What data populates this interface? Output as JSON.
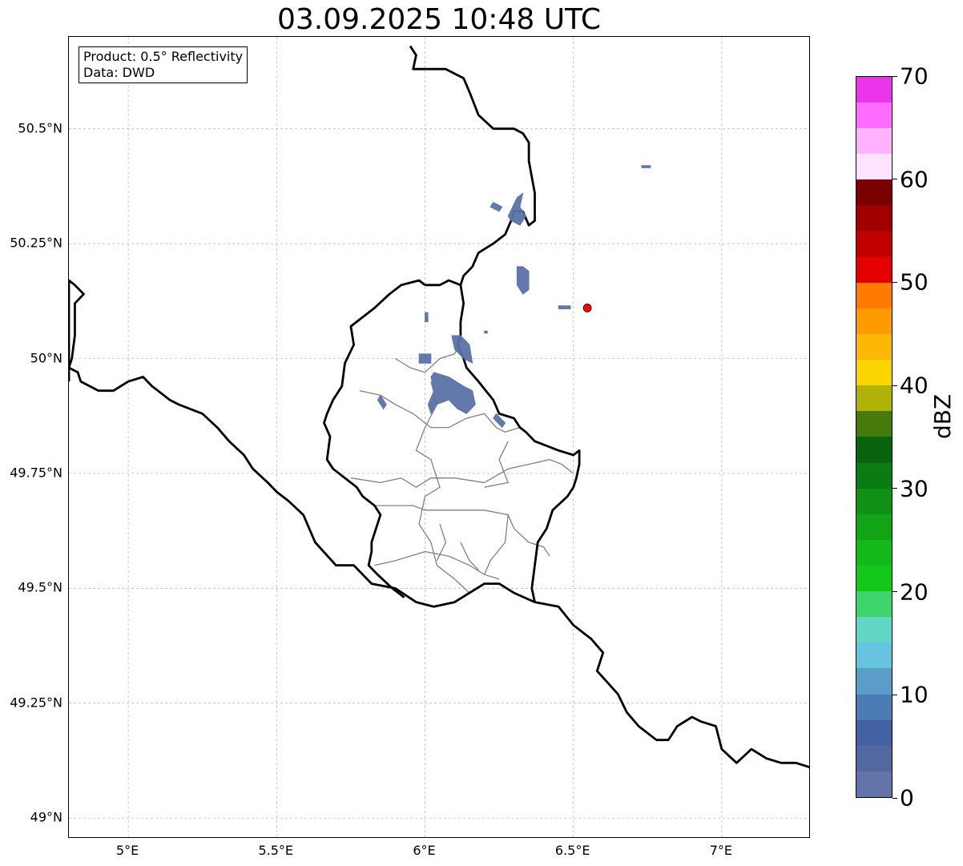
{
  "title": "03.09.2025 10:48 UTC",
  "info": {
    "product": "Product: 0.5° Reflectivity",
    "data_source": "Data: DWD"
  },
  "map_extent": {
    "lon_min": 4.8,
    "lon_max": 7.3,
    "lat_min": 48.955,
    "lat_max": 50.7
  },
  "grid": {
    "lon_ticks": [
      5.0,
      5.5,
      6.0,
      6.5,
      7.0
    ],
    "lon_labels": [
      "5°E",
      "5.5°E",
      "6°E",
      "6.5°E",
      "7°E"
    ],
    "lat_ticks": [
      50.5,
      50.25,
      50.0,
      49.75,
      49.5,
      49.25,
      49.0
    ],
    "lat_labels": [
      "50.5°N",
      "50.25°N",
      "50°N",
      "49.75°N",
      "49.5°N",
      "49.25°N",
      "49°N"
    ]
  },
  "radar_site": {
    "lon": 6.547,
    "lat": 50.11,
    "color": "#ff0000"
  },
  "echo_color": "#5b72a8",
  "colorbar": {
    "label": "dBZ",
    "min": 0,
    "max": 70,
    "tick_values": [
      0,
      10,
      20,
      30,
      40,
      50,
      60,
      70
    ],
    "tick_labels": [
      "0",
      "10",
      "20",
      "30",
      "40",
      "50",
      "60",
      "70"
    ],
    "colors": [
      "#6574a8",
      "#5468a0",
      "#4461a3",
      "#4b7cb5",
      "#5b9dc9",
      "#67c4de",
      "#61d6c4",
      "#3dd46c",
      "#12c919",
      "#13ba1a",
      "#11a516",
      "#0f9115",
      "#0a7c12",
      "#08650d",
      "#467a0b",
      "#afb207",
      "#fcd600",
      "#fdb805",
      "#fe9a02",
      "#fe7a00",
      "#e40000",
      "#c10000",
      "#a10000",
      "#7b0000",
      "#ffe2ff",
      "#ffb3ff",
      "#ff6cff",
      "#ea35ea"
    ]
  },
  "features": {
    "borders": [
      [
        [
          5.95,
          50.68
        ],
        [
          5.97,
          50.66
        ],
        [
          5.96,
          50.63
        ],
        [
          6.07,
          50.63
        ],
        [
          6.13,
          50.61
        ],
        [
          6.15,
          50.58
        ],
        [
          6.18,
          50.53
        ],
        [
          6.23,
          50.5
        ],
        [
          6.3,
          50.5
        ],
        [
          6.33,
          50.49
        ],
        [
          6.35,
          50.47
        ],
        [
          6.35,
          50.43
        ],
        [
          6.37,
          50.36
        ],
        [
          6.37,
          50.33
        ],
        [
          6.37,
          50.3
        ],
        [
          6.35,
          50.29
        ],
        [
          6.33,
          50.32
        ],
        [
          6.3,
          50.32
        ],
        [
          6.29,
          50.3
        ],
        [
          6.27,
          50.27
        ],
        [
          6.23,
          50.25
        ],
        [
          6.18,
          50.23
        ],
        [
          6.16,
          50.2
        ],
        [
          6.13,
          50.18
        ],
        [
          6.12,
          50.16
        ],
        [
          6.13,
          50.12
        ],
        [
          6.12,
          50.08
        ],
        [
          6.12,
          50.05
        ],
        [
          6.11,
          50.03
        ],
        [
          6.13,
          50.0
        ],
        [
          6.14,
          49.98
        ],
        [
          6.18,
          49.95
        ],
        [
          6.23,
          49.91
        ],
        [
          6.25,
          49.88
        ],
        [
          6.3,
          49.87
        ],
        [
          6.32,
          49.85
        ],
        [
          6.34,
          49.84
        ],
        [
          6.37,
          49.82
        ],
        [
          6.41,
          49.81
        ],
        [
          6.45,
          49.8
        ],
        [
          6.5,
          49.79
        ],
        [
          6.52,
          49.8
        ],
        [
          6.52,
          49.77
        ],
        [
          6.51,
          49.74
        ],
        [
          6.5,
          49.72
        ],
        [
          6.48,
          49.7
        ],
        [
          6.43,
          49.67
        ],
        [
          6.41,
          49.63
        ],
        [
          6.38,
          49.6
        ],
        [
          6.37,
          49.55
        ],
        [
          6.36,
          49.5
        ],
        [
          6.37,
          49.47
        ]
      ],
      [
        [
          4.8,
          49.98
        ],
        [
          4.83,
          49.97
        ],
        [
          4.84,
          49.95
        ],
        [
          4.9,
          49.93
        ],
        [
          4.95,
          49.93
        ],
        [
          5.0,
          49.95
        ],
        [
          5.05,
          49.96
        ],
        [
          5.08,
          49.94
        ],
        [
          5.1,
          49.93
        ],
        [
          5.14,
          49.91
        ],
        [
          5.17,
          49.9
        ],
        [
          5.25,
          49.88
        ],
        [
          5.3,
          49.85
        ],
        [
          5.34,
          49.82
        ],
        [
          5.39,
          49.79
        ],
        [
          5.42,
          49.76
        ],
        [
          5.47,
          49.73
        ],
        [
          5.5,
          49.71
        ],
        [
          5.54,
          49.69
        ],
        [
          5.59,
          49.66
        ],
        [
          5.63,
          49.6
        ],
        [
          5.7,
          49.55
        ],
        [
          5.76,
          49.55
        ],
        [
          5.82,
          49.51
        ],
        [
          5.9,
          49.5
        ],
        [
          5.97,
          49.47
        ],
        [
          6.03,
          49.46
        ],
        [
          6.1,
          49.47
        ],
        [
          6.15,
          49.49
        ],
        [
          6.2,
          49.51
        ],
        [
          6.25,
          49.51
        ],
        [
          6.3,
          49.49
        ],
        [
          6.37,
          49.47
        ],
        [
          6.45,
          49.46
        ],
        [
          6.5,
          49.42
        ],
        [
          6.56,
          49.39
        ],
        [
          6.6,
          49.36
        ],
        [
          6.58,
          49.32
        ],
        [
          6.65,
          49.27
        ],
        [
          6.68,
          49.23
        ],
        [
          6.72,
          49.2
        ],
        [
          6.78,
          49.17
        ],
        [
          6.82,
          49.17
        ],
        [
          6.85,
          49.2
        ],
        [
          6.9,
          49.22
        ],
        [
          6.93,
          49.21
        ],
        [
          6.98,
          49.2
        ],
        [
          7.0,
          49.15
        ],
        [
          7.05,
          49.12
        ],
        [
          7.1,
          49.15
        ],
        [
          7.15,
          49.13
        ],
        [
          7.2,
          49.12
        ],
        [
          7.25,
          49.12
        ],
        [
          7.3,
          49.11
        ]
      ],
      [
        [
          4.8,
          49.95
        ],
        [
          4.8,
          50.17
        ],
        [
          4.82,
          50.16
        ],
        [
          4.85,
          50.14
        ],
        [
          4.82,
          50.12
        ],
        [
          4.82,
          50.05
        ],
        [
          4.81,
          50.0
        ],
        [
          4.8,
          49.98
        ]
      ],
      [
        [
          6.0,
          50.16
        ],
        [
          5.98,
          50.17
        ],
        [
          5.92,
          50.16
        ],
        [
          5.88,
          50.14
        ],
        [
          5.83,
          50.11
        ],
        [
          5.79,
          50.09
        ],
        [
          5.75,
          50.07
        ],
        [
          5.76,
          50.03
        ],
        [
          5.73,
          49.99
        ],
        [
          5.72,
          49.94
        ],
        [
          5.69,
          49.91
        ],
        [
          5.67,
          49.88
        ],
        [
          5.66,
          49.86
        ],
        [
          5.68,
          49.83
        ],
        [
          5.67,
          49.78
        ],
        [
          5.69,
          49.76
        ],
        [
          5.73,
          49.74
        ],
        [
          5.77,
          49.72
        ],
        [
          5.79,
          49.7
        ],
        [
          5.83,
          49.68
        ],
        [
          5.85,
          49.66
        ],
        [
          5.82,
          49.6
        ],
        [
          5.82,
          49.58
        ],
        [
          5.81,
          49.55
        ],
        [
          5.84,
          49.53
        ],
        [
          5.89,
          49.5
        ],
        [
          5.93,
          49.48
        ]
      ],
      [
        [
          6.0,
          50.16
        ],
        [
          6.05,
          50.16
        ],
        [
          6.08,
          50.17
        ],
        [
          6.12,
          50.16
        ]
      ]
    ],
    "regions": [
      [
        [
          5.9,
          50.0
        ],
        [
          5.95,
          49.98
        ],
        [
          6.0,
          49.97
        ],
        [
          6.05,
          50.0
        ],
        [
          6.1,
          50.01
        ],
        [
          6.12,
          50.04
        ]
      ],
      [
        [
          5.78,
          49.93
        ],
        [
          5.85,
          49.92
        ],
        [
          5.9,
          49.9
        ],
        [
          5.96,
          49.88
        ],
        [
          6.02,
          49.85
        ],
        [
          6.08,
          49.85
        ],
        [
          6.14,
          49.87
        ],
        [
          6.2,
          49.88
        ],
        [
          6.24,
          49.85
        ],
        [
          6.27,
          49.84
        ],
        [
          6.32,
          49.85
        ]
      ],
      [
        [
          6.02,
          49.95
        ],
        [
          6.04,
          49.9
        ],
        [
          6.0,
          49.85
        ],
        [
          5.97,
          49.8
        ],
        [
          6.02,
          49.78
        ],
        [
          6.05,
          49.72
        ],
        [
          6.0,
          49.7
        ],
        [
          5.98,
          49.64
        ],
        [
          6.02,
          49.6
        ],
        [
          6.04,
          49.55
        ],
        [
          6.1,
          49.52
        ],
        [
          6.15,
          49.49
        ]
      ],
      [
        [
          5.75,
          49.74
        ],
        [
          5.85,
          49.73
        ],
        [
          5.92,
          49.74
        ],
        [
          5.97,
          49.72
        ],
        [
          6.02,
          49.74
        ],
        [
          6.1,
          49.74
        ],
        [
          6.2,
          49.73
        ],
        [
          6.28,
          49.76
        ],
        [
          6.35,
          49.77
        ],
        [
          6.42,
          49.78
        ],
        [
          6.46,
          49.77
        ],
        [
          6.5,
          49.75
        ]
      ],
      [
        [
          6.28,
          49.82
        ],
        [
          6.25,
          49.78
        ],
        [
          6.28,
          49.73
        ],
        [
          6.2,
          49.72
        ]
      ],
      [
        [
          5.83,
          49.68
        ],
        [
          5.9,
          49.68
        ],
        [
          5.96,
          49.68
        ],
        [
          6.0,
          49.67
        ],
        [
          6.1,
          49.67
        ],
        [
          6.2,
          49.67
        ],
        [
          6.28,
          49.66
        ],
        [
          6.3,
          49.63
        ],
        [
          6.35,
          49.6
        ],
        [
          6.4,
          49.59
        ],
        [
          6.42,
          49.57
        ]
      ],
      [
        [
          5.83,
          49.55
        ],
        [
          5.9,
          49.56
        ],
        [
          6.0,
          49.58
        ],
        [
          6.08,
          49.57
        ],
        [
          6.15,
          49.55
        ],
        [
          6.2,
          49.53
        ],
        [
          6.25,
          49.52
        ]
      ],
      [
        [
          6.28,
          49.66
        ],
        [
          6.27,
          49.6
        ],
        [
          6.22,
          49.56
        ],
        [
          6.2,
          49.53
        ]
      ],
      [
        [
          6.05,
          49.64
        ],
        [
          6.07,
          49.6
        ],
        [
          6.04,
          49.56
        ]
      ],
      [
        [
          6.12,
          49.6
        ],
        [
          6.15,
          49.56
        ],
        [
          6.18,
          49.54
        ]
      ]
    ],
    "echoes": [
      [
        [
          6.28,
          50.31
        ],
        [
          6.31,
          50.35
        ],
        [
          6.33,
          50.36
        ],
        [
          6.32,
          50.33
        ],
        [
          6.34,
          50.31
        ],
        [
          6.32,
          50.29
        ],
        [
          6.29,
          50.3
        ]
      ],
      [
        [
          6.31,
          50.2
        ],
        [
          6.33,
          50.2
        ],
        [
          6.35,
          50.19
        ],
        [
          6.35,
          50.15
        ],
        [
          6.33,
          50.14
        ],
        [
          6.31,
          50.16
        ]
      ],
      [
        [
          6.09,
          50.05
        ],
        [
          6.12,
          50.05
        ],
        [
          6.15,
          50.03
        ],
        [
          6.16,
          49.99
        ],
        [
          6.13,
          50.0
        ],
        [
          6.1,
          50.02
        ]
      ],
      [
        [
          5.98,
          50.01
        ],
        [
          6.02,
          50.01
        ],
        [
          6.02,
          49.99
        ],
        [
          5.98,
          49.99
        ]
      ],
      [
        [
          6.03,
          49.97
        ],
        [
          6.08,
          49.96
        ],
        [
          6.13,
          49.94
        ],
        [
          6.16,
          49.93
        ],
        [
          6.17,
          49.9
        ],
        [
          6.14,
          49.88
        ],
        [
          6.11,
          49.89
        ],
        [
          6.08,
          49.91
        ],
        [
          6.04,
          49.9
        ],
        [
          6.02,
          49.88
        ],
        [
          6.01,
          49.9
        ],
        [
          6.03,
          49.93
        ],
        [
          6.02,
          49.96
        ]
      ],
      [
        [
          6.24,
          49.88
        ],
        [
          6.27,
          49.86
        ],
        [
          6.26,
          49.85
        ],
        [
          6.23,
          49.87
        ]
      ],
      [
        [
          5.85,
          49.92
        ],
        [
          5.87,
          49.9
        ],
        [
          5.86,
          49.89
        ],
        [
          5.84,
          49.91
        ]
      ],
      [
        [
          6.2,
          50.06
        ],
        [
          6.21,
          50.06
        ],
        [
          6.21,
          50.055
        ],
        [
          6.2,
          50.055
        ]
      ],
      [
        [
          6.23,
          50.34
        ],
        [
          6.26,
          50.33
        ],
        [
          6.25,
          50.32
        ],
        [
          6.22,
          50.33
        ]
      ],
      [
        [
          6.45,
          50.115
        ],
        [
          6.49,
          50.115
        ],
        [
          6.49,
          50.108
        ],
        [
          6.45,
          50.108
        ]
      ],
      [
        [
          6.73,
          50.42
        ],
        [
          6.76,
          50.42
        ],
        [
          6.76,
          50.415
        ],
        [
          6.73,
          50.415
        ]
      ],
      [
        [
          6.0,
          50.1
        ],
        [
          6.01,
          50.1
        ],
        [
          6.01,
          50.08
        ],
        [
          6.0,
          50.08
        ]
      ]
    ]
  }
}
